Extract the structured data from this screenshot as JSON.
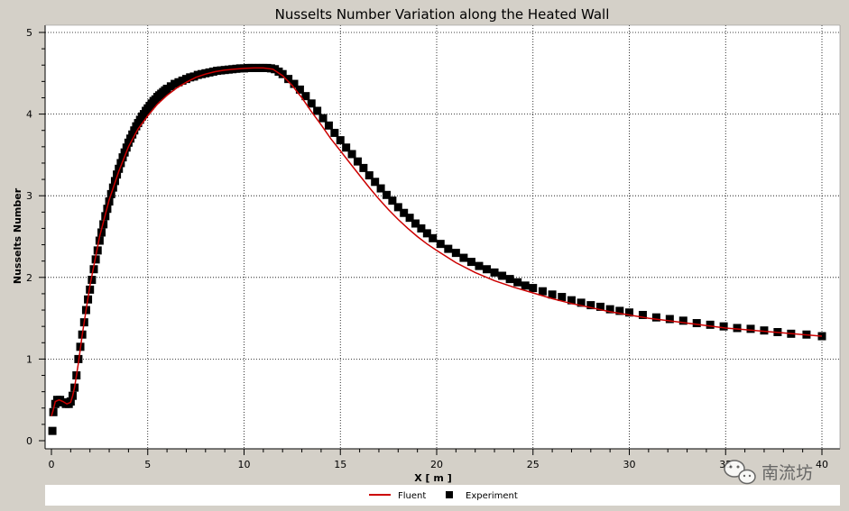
{
  "chart_data": {
    "type": "line",
    "title": "Nusselts Number Variation along the Heated Wall",
    "xlabel": "X [ m ]",
    "ylabel": "Nusselts Number",
    "xlim": [
      0,
      40
    ],
    "ylim": [
      0,
      5
    ],
    "xticks": [
      "0",
      "5",
      "10",
      "15",
      "20",
      "25",
      "30",
      "35",
      "40"
    ],
    "yticks": [
      "0",
      "1",
      "2",
      "3",
      "4",
      "5"
    ],
    "grid": true,
    "legend_position": "bottom",
    "series": [
      {
        "name": "Fluent",
        "style": "line",
        "color": "#cc0000",
        "x": [
          0,
          0.1,
          0.2,
          0.4,
          0.6,
          0.8,
          1.0,
          1.1,
          1.2,
          1.4,
          1.6,
          1.8,
          2,
          2.5,
          3,
          3.5,
          4,
          4.5,
          5,
          5.5,
          6,
          6.5,
          7,
          7.5,
          8,
          8.5,
          9,
          9.5,
          10,
          10.5,
          11,
          11.5,
          12,
          12.5,
          13,
          13.5,
          14,
          14.5,
          15,
          15.5,
          16,
          16.5,
          17,
          17.5,
          18,
          18.5,
          19,
          19.5,
          20,
          21,
          22,
          23,
          24,
          25,
          26,
          27,
          28,
          29,
          30,
          31,
          32,
          33,
          34,
          35,
          36,
          37,
          38,
          39,
          40
        ],
        "y": [
          0.3,
          0.38,
          0.48,
          0.5,
          0.48,
          0.45,
          0.47,
          0.55,
          0.65,
          0.95,
          1.3,
          1.6,
          1.9,
          2.5,
          2.95,
          3.3,
          3.6,
          3.82,
          3.98,
          4.12,
          4.23,
          4.32,
          4.39,
          4.45,
          4.49,
          4.52,
          4.54,
          4.55,
          4.56,
          4.565,
          4.565,
          4.55,
          4.47,
          4.35,
          4.2,
          4.03,
          3.87,
          3.7,
          3.55,
          3.4,
          3.25,
          3.1,
          2.96,
          2.83,
          2.71,
          2.6,
          2.5,
          2.41,
          2.33,
          2.18,
          2.06,
          1.96,
          1.88,
          1.81,
          1.74,
          1.68,
          1.63,
          1.58,
          1.54,
          1.5,
          1.47,
          1.44,
          1.41,
          1.38,
          1.36,
          1.34,
          1.32,
          1.3,
          1.28
        ]
      },
      {
        "name": "Experiment",
        "style": "marker",
        "color": "#000000",
        "x": [
          0.05,
          0.1,
          0.2,
          0.3,
          0.45,
          0.6,
          0.75,
          0.9,
          1.0,
          1.1,
          1.2,
          1.3,
          1.4,
          1.5,
          1.6,
          1.7,
          1.8,
          1.9,
          2.0,
          2.1,
          2.2,
          2.3,
          2.4,
          2.5,
          2.6,
          2.7,
          2.8,
          2.9,
          3.0,
          3.1,
          3.2,
          3.3,
          3.4,
          3.5,
          3.6,
          3.7,
          3.8,
          3.9,
          4.0,
          4.1,
          4.2,
          4.3,
          4.4,
          4.5,
          4.6,
          4.7,
          4.8,
          4.9,
          5.0,
          5.1,
          5.2,
          5.3,
          5.4,
          5.5,
          5.6,
          5.7,
          5.8,
          5.9,
          6.0,
          6.2,
          6.4,
          6.6,
          6.8,
          7.0,
          7.2,
          7.4,
          7.6,
          7.8,
          8.0,
          8.2,
          8.4,
          8.6,
          8.8,
          9.0,
          9.2,
          9.4,
          9.6,
          9.8,
          10.0,
          10.2,
          10.4,
          10.6,
          10.8,
          11.0,
          11.2,
          11.4,
          11.6,
          11.8,
          12.0,
          12.3,
          12.6,
          12.9,
          13.2,
          13.5,
          13.8,
          14.1,
          14.4,
          14.7,
          15.0,
          15.3,
          15.6,
          15.9,
          16.2,
          16.5,
          16.8,
          17.1,
          17.4,
          17.7,
          18.0,
          18.3,
          18.6,
          18.9,
          19.2,
          19.5,
          19.8,
          20.2,
          20.6,
          21.0,
          21.4,
          21.8,
          22.2,
          22.6,
          23.0,
          23.4,
          23.8,
          24.2,
          24.6,
          25.0,
          25.5,
          26.0,
          26.5,
          27.0,
          27.5,
          28.0,
          28.5,
          29.0,
          29.5,
          30.0,
          30.7,
          31.4,
          32.1,
          32.8,
          33.5,
          34.2,
          34.9,
          35.6,
          36.3,
          37.0,
          37.7,
          38.4,
          39.2,
          40.0
        ],
        "y": [
          0.12,
          0.35,
          0.45,
          0.5,
          0.5,
          0.47,
          0.45,
          0.45,
          0.48,
          0.55,
          0.65,
          0.8,
          1.0,
          1.15,
          1.3,
          1.45,
          1.6,
          1.73,
          1.85,
          1.97,
          2.1,
          2.22,
          2.33,
          2.45,
          2.55,
          2.65,
          2.75,
          2.84,
          2.93,
          3.02,
          3.1,
          3.18,
          3.26,
          3.33,
          3.4,
          3.47,
          3.53,
          3.59,
          3.65,
          3.7,
          3.75,
          3.8,
          3.85,
          3.89,
          3.93,
          3.97,
          4.0,
          4.04,
          4.07,
          4.1,
          4.13,
          4.16,
          4.18,
          4.21,
          4.23,
          4.25,
          4.27,
          4.29,
          4.31,
          4.34,
          4.37,
          4.39,
          4.41,
          4.43,
          4.45,
          4.46,
          4.48,
          4.49,
          4.5,
          4.51,
          4.52,
          4.53,
          4.535,
          4.54,
          4.545,
          4.55,
          4.555,
          4.56,
          4.56,
          4.565,
          4.565,
          4.565,
          4.565,
          4.565,
          4.565,
          4.56,
          4.55,
          4.52,
          4.49,
          4.43,
          4.37,
          4.3,
          4.22,
          4.13,
          4.04,
          3.95,
          3.86,
          3.77,
          3.68,
          3.59,
          3.51,
          3.42,
          3.34,
          3.25,
          3.17,
          3.09,
          3.01,
          2.94,
          2.86,
          2.79,
          2.73,
          2.66,
          2.6,
          2.54,
          2.48,
          2.41,
          2.35,
          2.3,
          2.24,
          2.19,
          2.14,
          2.1,
          2.06,
          2.02,
          1.98,
          1.94,
          1.9,
          1.87,
          1.83,
          1.79,
          1.76,
          1.72,
          1.69,
          1.66,
          1.64,
          1.61,
          1.59,
          1.57,
          1.54,
          1.51,
          1.49,
          1.47,
          1.44,
          1.42,
          1.4,
          1.38,
          1.37,
          1.35,
          1.33,
          1.31,
          1.3,
          1.28
        ]
      }
    ]
  },
  "watermark": {
    "text": "南流坊",
    "icon": "wechat-icon"
  }
}
